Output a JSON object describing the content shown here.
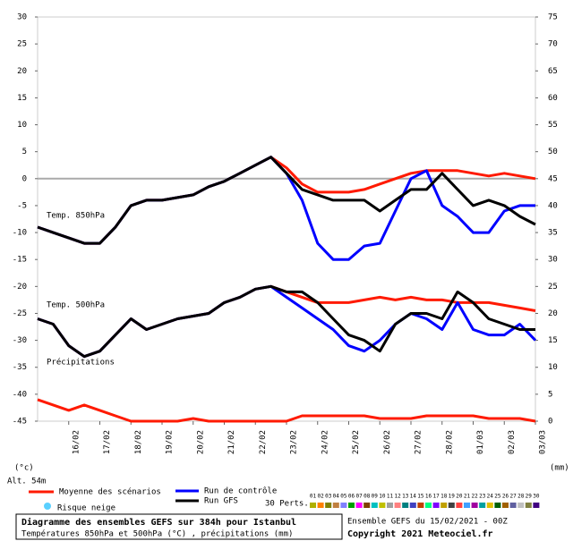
{
  "chart_data": {
    "type": "line",
    "x": [
      0,
      12,
      24,
      36,
      48,
      60,
      72,
      84,
      96,
      108,
      120,
      132,
      144,
      156,
      168,
      180,
      192,
      204,
      216,
      228,
      240,
      252,
      264,
      276,
      288,
      300,
      312,
      324,
      336,
      348,
      360,
      372,
      384
    ],
    "xlim": [
      0,
      384
    ],
    "xticks": [
      {
        "value": 24,
        "label": "16/02"
      },
      {
        "value": 48,
        "label": "17/02"
      },
      {
        "value": 72,
        "label": "18/02"
      },
      {
        "value": 96,
        "label": "19/02"
      },
      {
        "value": 120,
        "label": "20/02"
      },
      {
        "value": 144,
        "label": "21/02"
      },
      {
        "value": 168,
        "label": "22/02"
      },
      {
        "value": 192,
        "label": "23/02"
      },
      {
        "value": 216,
        "label": "24/02"
      },
      {
        "value": 240,
        "label": "25/02"
      },
      {
        "value": 264,
        "label": "26/02"
      },
      {
        "value": 288,
        "label": "27/02"
      },
      {
        "value": 312,
        "label": "28/02"
      },
      {
        "value": 336,
        "label": "01/03"
      },
      {
        "value": 360,
        "label": "02/03"
      },
      {
        "value": 384,
        "label": "03/03"
      }
    ],
    "ylim": [
      -45,
      30
    ],
    "yticks": [
      -45,
      -40,
      -35,
      -30,
      -25,
      -20,
      -15,
      -10,
      -5,
      0,
      5,
      10,
      15,
      20,
      25,
      30
    ],
    "y2lim": [
      0,
      75
    ],
    "y2ticks": [
      0,
      5,
      10,
      15,
      20,
      25,
      30,
      35,
      40,
      45,
      50,
      55,
      60,
      65,
      70,
      75
    ],
    "y_unit": "(°c)",
    "y2_unit": "(mm)",
    "altitude": "Alt. 54m",
    "annotations": [
      "Temp. 850hPa",
      "Temp. 500hPa",
      "Précipitations"
    ],
    "series": [
      {
        "name": "Moyenne des scénarios",
        "color": "#ff1a00",
        "axis": "y",
        "values": [
          -9,
          -10,
          -11,
          -12,
          -12,
          -9,
          -5,
          -4,
          -4,
          -3.5,
          -3,
          -1.5,
          -0.5,
          1,
          2.5,
          4,
          2,
          -1,
          -2.5,
          -2.5,
          -2.5,
          -2,
          -1,
          0,
          1,
          1.5,
          1.5,
          1.5,
          1,
          0.5,
          1,
          0.5,
          0
        ]
      },
      {
        "name": "Run de contrôle",
        "color": "#0000ff",
        "axis": "y",
        "values": [
          -9,
          -10,
          -11,
          -12,
          -12,
          -9,
          -5,
          -4,
          -4,
          -3.5,
          -3,
          -1.5,
          -0.5,
          1,
          2.5,
          4,
          1,
          -4,
          -12,
          -15,
          -15,
          -12.5,
          -12,
          -6,
          0,
          1.5,
          -5,
          -7,
          -10,
          -10,
          -6,
          -5,
          -5
        ]
      },
      {
        "name": "Run GFS",
        "color": "#000000",
        "axis": "y",
        "values": [
          -9,
          -10,
          -11,
          -12,
          -12,
          -9,
          -5,
          -4,
          -4,
          -3.5,
          -3,
          -1.5,
          -0.5,
          1,
          2.5,
          4,
          1,
          -2,
          -3,
          -4,
          -4,
          -4,
          -6,
          -4,
          -2,
          -2,
          1,
          -2,
          -5,
          -4,
          -5,
          -7,
          -8.5
        ]
      },
      {
        "color": "#ff1a00",
        "axis": "y",
        "values": [
          -26,
          -27,
          -31,
          -33,
          -32,
          -29,
          -26,
          -28,
          -27,
          -26,
          -25.5,
          -25,
          -23,
          -22,
          -20.5,
          -20,
          -21,
          -22,
          -23,
          -23,
          -23,
          -22.5,
          -22,
          -22.5,
          -22,
          -22.5,
          -22.5,
          -23,
          -23,
          -23,
          -23.5,
          -24,
          -24.5
        ]
      },
      {
        "color": "#0000ff",
        "axis": "y",
        "values": [
          -26,
          -27,
          -31,
          -33,
          -32,
          -29,
          -26,
          -28,
          -27,
          -26,
          -25.5,
          -25,
          -23,
          -22,
          -20.5,
          -20,
          -22,
          -24,
          -26,
          -28,
          -31,
          -32,
          -30,
          -27,
          -25,
          -26,
          -28,
          -23,
          -28,
          -29,
          -29,
          -27,
          -30
        ]
      },
      {
        "color": "#000000",
        "axis": "y",
        "values": [
          -26,
          -27,
          -31,
          -33,
          -32,
          -29,
          -26,
          -28,
          -27,
          -26,
          -25.5,
          -25,
          -23,
          -22,
          -20.5,
          -20,
          -21,
          -21,
          -23,
          -26,
          -29,
          -30,
          -32,
          -27,
          -25,
          -25,
          -26,
          -21,
          -23,
          -26,
          -27,
          -28,
          -28
        ]
      },
      {
        "color": "#ff1a00",
        "axis": "y2",
        "values": [
          4,
          3,
          2,
          3,
          2,
          1,
          0,
          0,
          0,
          0,
          0.5,
          0,
          0,
          0,
          0,
          0,
          0,
          1,
          1,
          1,
          1,
          1,
          0.5,
          0.5,
          0.5,
          1,
          1,
          1,
          1,
          0.5,
          0.5,
          0.5,
          0
        ]
      }
    ],
    "legend_extra": [
      "30 Perts.",
      "Risque neige"
    ],
    "perturbations": [
      {
        "name": "01",
        "color": "#b0b000"
      },
      {
        "name": "02",
        "color": "#ff8000"
      },
      {
        "name": "03",
        "color": "#808000"
      },
      {
        "name": "04",
        "color": "#c08040"
      },
      {
        "name": "05",
        "color": "#8080ff"
      },
      {
        "name": "06",
        "color": "#00a000"
      },
      {
        "name": "07",
        "color": "#ff00ff"
      },
      {
        "name": "08",
        "color": "#804000"
      },
      {
        "name": "09",
        "color": "#00c0c0"
      },
      {
        "name": "10",
        "color": "#c0c000"
      },
      {
        "name": "11",
        "color": "#a0a0a0"
      },
      {
        "name": "12",
        "color": "#ff8080"
      },
      {
        "name": "13",
        "color": "#008080"
      },
      {
        "name": "14",
        "color": "#4040c0"
      },
      {
        "name": "15",
        "color": "#c04000"
      },
      {
        "name": "16",
        "color": "#00ff80"
      },
      {
        "name": "17",
        "color": "#8000ff"
      },
      {
        "name": "18",
        "color": "#c0a000"
      },
      {
        "name": "19",
        "color": "#404040"
      },
      {
        "name": "20",
        "color": "#ff4040"
      },
      {
        "name": "21",
        "color": "#40a0ff"
      },
      {
        "name": "22",
        "color": "#a000a0"
      },
      {
        "name": "23",
        "color": "#00a0a0"
      },
      {
        "name": "24",
        "color": "#e0c000"
      },
      {
        "name": "25",
        "color": "#006000"
      },
      {
        "name": "26",
        "color": "#a06000"
      },
      {
        "name": "27",
        "color": "#6060a0"
      },
      {
        "name": "28",
        "color": "#c0c0c0"
      },
      {
        "name": "29",
        "color": "#808040"
      },
      {
        "name": "30",
        "color": "#400080"
      }
    ],
    "footer": {
      "title": "Diagramme des ensembles GEFS sur 384h pour Istanbul",
      "subtitle": "Températures 850hPa et 500hPa (°C) , précipitations (mm)",
      "run": "Ensemble GEFS du 15/02/2021 - 00Z",
      "copyright": "Copyright 2021 Meteociel.fr"
    }
  }
}
